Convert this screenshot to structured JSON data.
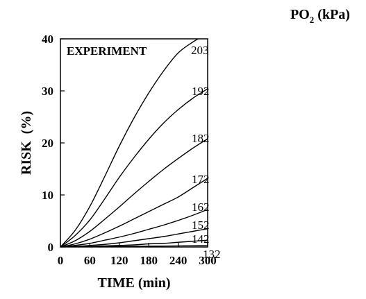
{
  "chart_data": {
    "type": "line",
    "annotation": "EXPERIMENT",
    "xlabel": "TIME (min)",
    "ylabel": "RISK  (%)",
    "legend_title": {
      "main": "PO",
      "sub": "2",
      "unit": " (kPa)"
    },
    "xlim": [
      0,
      300
    ],
    "ylim": [
      0,
      40
    ],
    "x_ticks": [
      "0",
      "60",
      "120",
      "180",
      "240",
      "300"
    ],
    "y_ticks": [
      "0",
      "10",
      "20",
      "30",
      "40"
    ],
    "x": [
      0,
      30,
      60,
      90,
      120,
      150,
      180,
      210,
      240,
      270,
      300
    ],
    "series": [
      {
        "name": "203",
        "values": [
          0,
          3.2,
          7.8,
          13.5,
          19.4,
          24.8,
          29.6,
          33.8,
          37.3,
          39.4,
          41.0
        ]
      },
      {
        "name": "192",
        "values": [
          0,
          2.2,
          5.2,
          9.2,
          13.4,
          17.2,
          20.7,
          23.8,
          26.4,
          28.6,
          30.4
        ]
      },
      {
        "name": "182",
        "values": [
          0,
          1.2,
          3.0,
          5.3,
          7.7,
          10.2,
          12.6,
          14.9,
          17.0,
          19.0,
          20.8
        ]
      },
      {
        "name": "172",
        "values": [
          0,
          0.6,
          1.5,
          2.7,
          4.0,
          5.4,
          6.8,
          8.2,
          9.6,
          11.4,
          13.2
        ]
      },
      {
        "name": "162",
        "values": [
          0,
          0.3,
          0.7,
          1.3,
          1.9,
          2.6,
          3.4,
          4.2,
          5.1,
          6.1,
          7.2
        ]
      },
      {
        "name": "152",
        "values": [
          0,
          0.1,
          0.3,
          0.5,
          0.8,
          1.2,
          1.6,
          2.0,
          2.5,
          3.0,
          3.5
        ]
      },
      {
        "name": "142",
        "values": [
          0,
          0.05,
          0.1,
          0.2,
          0.3,
          0.4,
          0.6,
          0.7,
          0.9,
          1.1,
          1.3
        ]
      },
      {
        "name": "132",
        "values": [
          0,
          0.02,
          0.04,
          0.06,
          0.09,
          0.12,
          0.15,
          0.18,
          0.21,
          0.24,
          0.27
        ]
      }
    ]
  }
}
